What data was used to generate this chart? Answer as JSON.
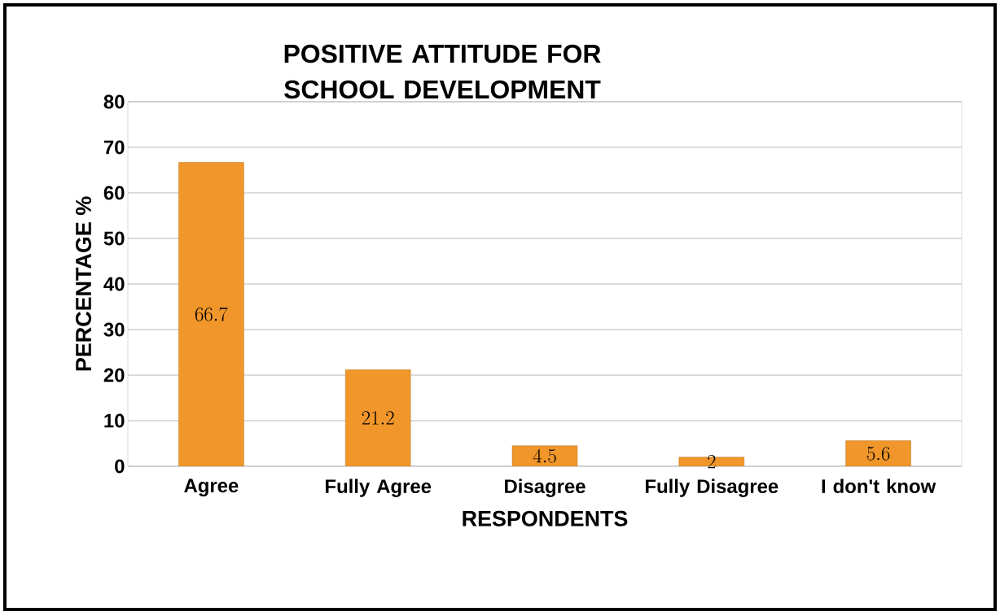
{
  "chart_data": {
    "type": "bar",
    "title": "POSITIVE ATTITUDE FOR SCHOOL DEVELOPMENT",
    "xlabel": "RESPONDENTS",
    "ylabel": "PERCENTAGE %",
    "categories": [
      "Agree",
      "Fully Agree",
      "Disagree",
      "Fully Disagree",
      "I don't know"
    ],
    "values": [
      66.7,
      21.2,
      4.5,
      2,
      5.6
    ],
    "color": "#f0962a",
    "ylim": [
      0,
      80
    ],
    "yticks": [
      0,
      10,
      20,
      30,
      40,
      50,
      60,
      70,
      80
    ],
    "grid": "y",
    "data_labels": true
  }
}
